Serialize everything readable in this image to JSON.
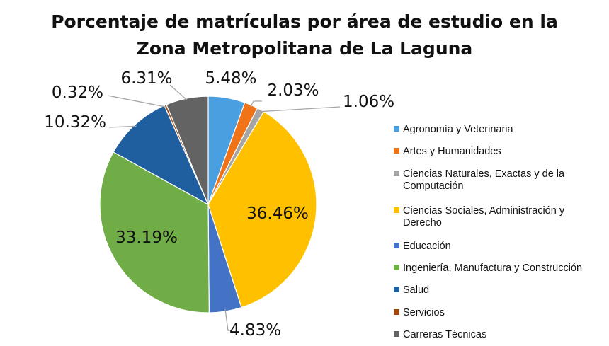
{
  "chart_data": {
    "type": "pie",
    "title_lines": [
      "Porcentaje de matrículas por área de estudio en la",
      "Zona Metropolitana de La Laguna"
    ],
    "legend_position": "right",
    "categories": [
      "Agronomía y Veterinaria",
      "Artes y Humanidades",
      "Ciencias Naturales, Exactas y de la Computación",
      "Ciencias Sociales, Administración y Derecho",
      "Educación",
      "Ingeniería, Manufactura y Construcción",
      "Salud",
      "Servicios",
      "Carreras Técnicas"
    ],
    "legend_lines": [
      [
        "Agronomía y Veterinaria"
      ],
      [
        "Artes y Humanidades"
      ],
      [
        "Ciencias Naturales, Exactas y de la",
        "Computación"
      ],
      [
        "Ciencias Sociales, Administración y",
        "Derecho"
      ],
      [
        "Educación"
      ],
      [
        "Ingeniería, Manufactura y Construcción"
      ],
      [
        "Salud"
      ],
      [
        "Servicios"
      ],
      [
        "Carreras Técnicas"
      ]
    ],
    "values": [
      5.48,
      2.03,
      1.06,
      36.46,
      4.83,
      33.19,
      10.32,
      0.32,
      6.31
    ],
    "value_labels": [
      "5.48%",
      "2.03%",
      "1.06%",
      "36.46%",
      "4.83%",
      "33.19%",
      "10.32%",
      "0.32%",
      "6.31%"
    ],
    "colors": [
      "#4a9fe0",
      "#f07318",
      "#a5a5a5",
      "#ffc000",
      "#4472c4",
      "#70ad47",
      "#1f5fa0",
      "#9e480e",
      "#636363"
    ]
  }
}
